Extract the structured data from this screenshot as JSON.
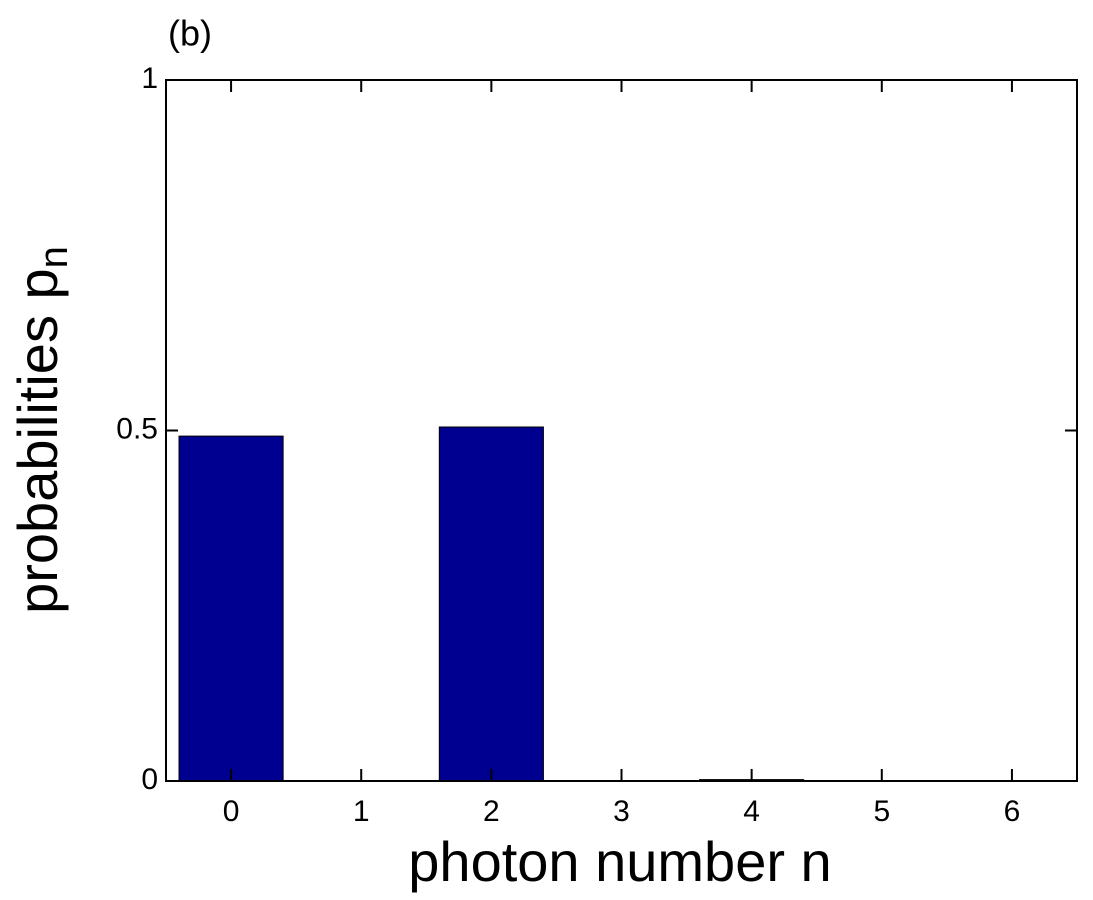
{
  "chart_data": {
    "type": "bar",
    "title": "(b)",
    "xlabel": "photon number n",
    "ylabel": "probabilities p",
    "ylabel_subscript": "n",
    "x": [
      0,
      1,
      2,
      3,
      4,
      5,
      6
    ],
    "values": [
      0.492,
      0,
      0.505,
      0,
      0.002,
      0,
      0
    ],
    "color": "#000090",
    "xlim": [
      -0.5,
      6.5
    ],
    "xticks": [
      0,
      1,
      2,
      3,
      4,
      5,
      6
    ],
    "ylim": [
      0,
      1
    ],
    "yticks": [
      0,
      0.5,
      1
    ],
    "bar_width": 0.8
  }
}
